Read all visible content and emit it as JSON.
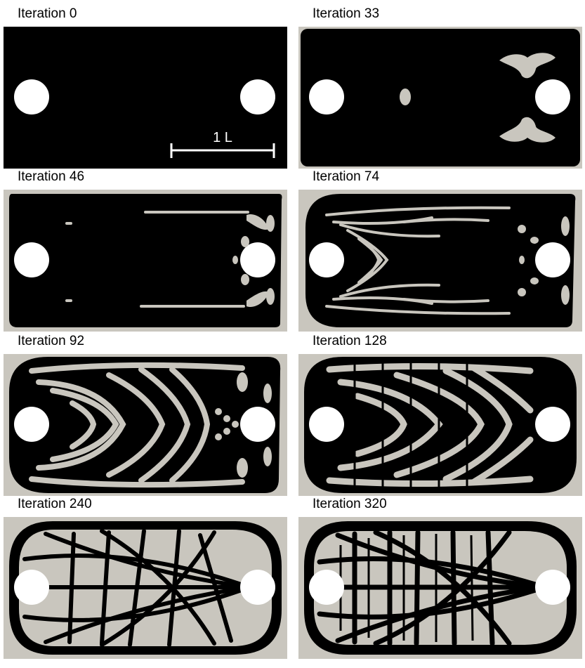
{
  "panels": [
    {
      "label": "Iteration 0"
    },
    {
      "label": "Iteration 33"
    },
    {
      "label": "Iteration 46"
    },
    {
      "label": "Iteration 74"
    },
    {
      "label": "Iteration 92"
    },
    {
      "label": "Iteration 128"
    },
    {
      "label": "Iteration 240"
    },
    {
      "label": "Iteration 320"
    }
  ],
  "scale_bar": {
    "label": "1 L"
  },
  "colors": {
    "material": "#000000",
    "void": "#c9c6be",
    "hole": "#ffffff"
  }
}
